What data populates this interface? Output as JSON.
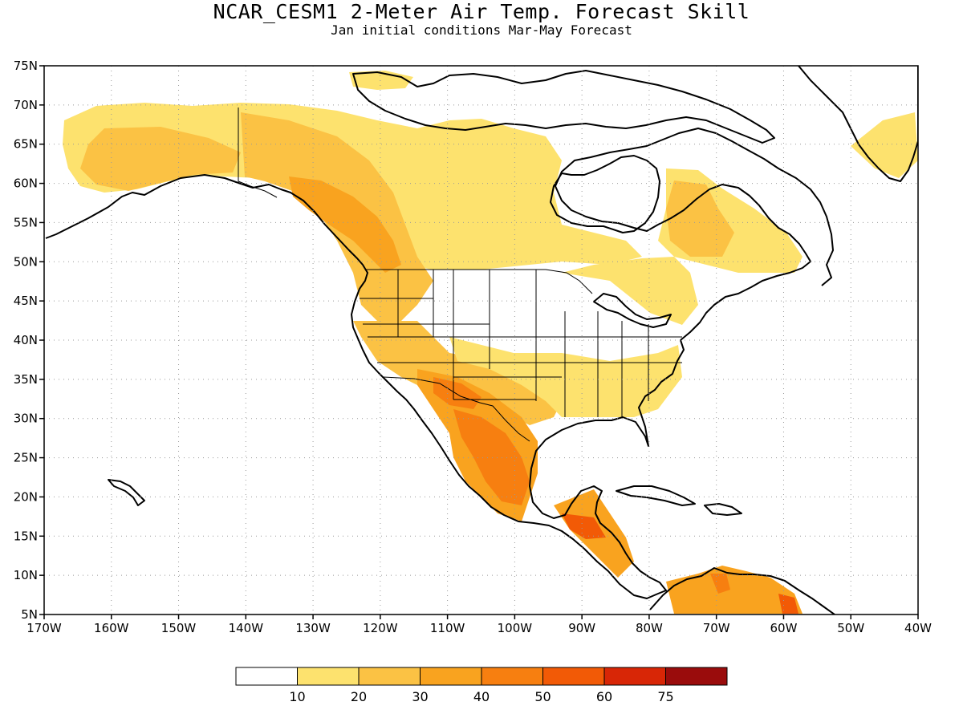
{
  "title": "NCAR_CESM1 2-Meter Air Temp. Forecast Skill",
  "subtitle": "Jan initial conditions  Mar-May Forecast",
  "map": {
    "lon_range": [
      -170,
      -40
    ],
    "lat_range": [
      5,
      75
    ],
    "grid": "dotted",
    "lat_ticks": [
      "75N",
      "70N",
      "65N",
      "60N",
      "55N",
      "50N",
      "45N",
      "40N",
      "35N",
      "30N",
      "25N",
      "20N",
      "15N",
      "10N",
      "5N"
    ],
    "lon_ticks": [
      "170W",
      "160W",
      "150W",
      "140W",
      "130W",
      "120W",
      "110W",
      "100W",
      "90W",
      "80W",
      "70W",
      "60W",
      "50W",
      "40W"
    ]
  },
  "colorbar": {
    "labels": [
      "10",
      "20",
      "30",
      "40",
      "50",
      "60",
      "75"
    ],
    "colors": [
      "#ffffff",
      "#fde26e",
      "#fbc244",
      "#f9a31f",
      "#f77f10",
      "#f25a06",
      "#d82606",
      "#9a0c0c"
    ]
  },
  "skill_regions": [
    {
      "level": 1,
      "area": "Alaska, Yukon and northern Canada"
    },
    {
      "level": 2,
      "area": "British Columbia and the Rockies"
    },
    {
      "level": 3,
      "area": "Pacific Northwest coast of Canada"
    },
    {
      "level": 1,
      "area": "Southeastern United States"
    },
    {
      "level": 2,
      "area": "Southwestern United States and southern Plains"
    },
    {
      "level": 4,
      "area": "Northern and central Mexico"
    },
    {
      "level": 5,
      "area": "Central America"
    },
    {
      "level": 1,
      "area": "Eastern Canada / Labrador"
    },
    {
      "level": 2,
      "area": "Quebec"
    },
    {
      "level": 1,
      "area": "Southeastern Greenland"
    },
    {
      "level": 3,
      "area": "Northern South America"
    }
  ]
}
